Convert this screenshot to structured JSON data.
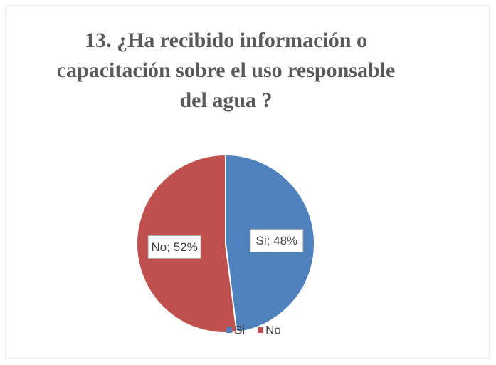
{
  "chart_data": {
    "type": "pie",
    "title": "13. ¿Ha recibido información o capacitación sobre el uso responsable del agua ?",
    "categories": [
      "Si",
      "No"
    ],
    "values": [
      48,
      52
    ],
    "value_labels": [
      "Si; 48%",
      "No; 52%"
    ],
    "colors": [
      "#4f81bd",
      "#c0504d"
    ],
    "legend": "bottom"
  }
}
